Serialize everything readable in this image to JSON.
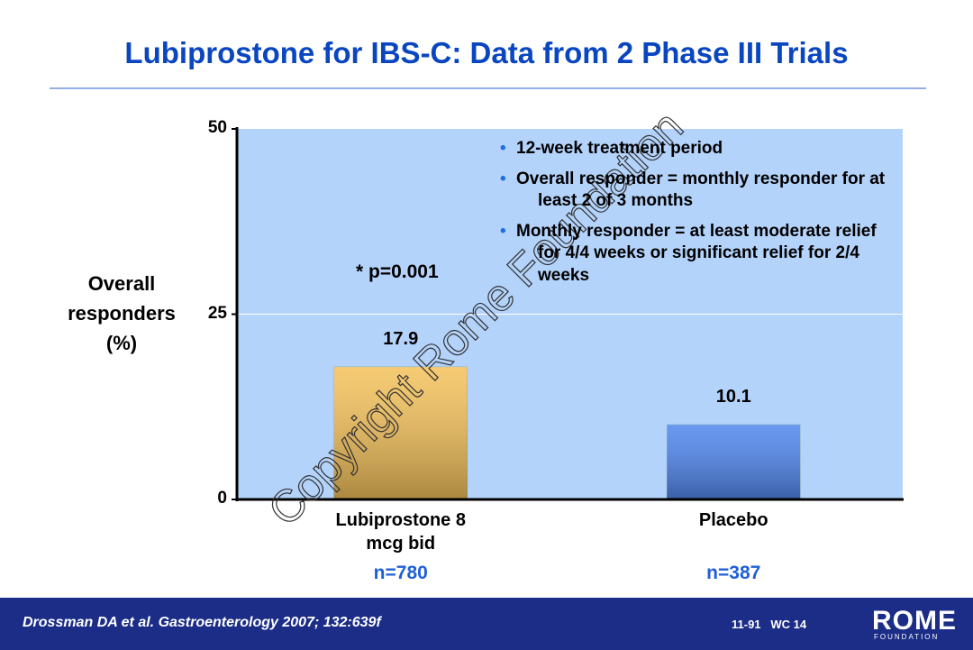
{
  "chart_data": {
    "type": "bar",
    "title": "Lubiprostone for IBS-C: Data from 2 Phase III Trials",
    "y_label": "Overall responders (%)",
    "categories": [
      "Lubiprostone 8 mcg bid",
      "Placebo"
    ],
    "values": [
      17.9,
      10.1
    ],
    "colors": [
      "#f4c15a",
      "#4f86ee"
    ],
    "sample_sizes": [
      "n=780",
      "n=387"
    ],
    "annotation": "* p=0.001",
    "notes": [
      "12-week treatment period",
      "Overall responder = monthly responder for at least 2 of 3 months",
      "Monthly responder = at least moderate relief for 4/4 weeks or significant relief for 2/4 weeks"
    ],
    "ylim": [
      0,
      50
    ],
    "yticks": [
      0,
      25,
      50
    ],
    "grid": true
  },
  "footer": {
    "citation": "Drossman DA et al. Gastroenterology 2007; 132:639f",
    "code": "11-91   WC 14",
    "logo": "ROME",
    "logo_sub": "FOUNDATION"
  },
  "watermark": "Copyright Rome Foundation"
}
